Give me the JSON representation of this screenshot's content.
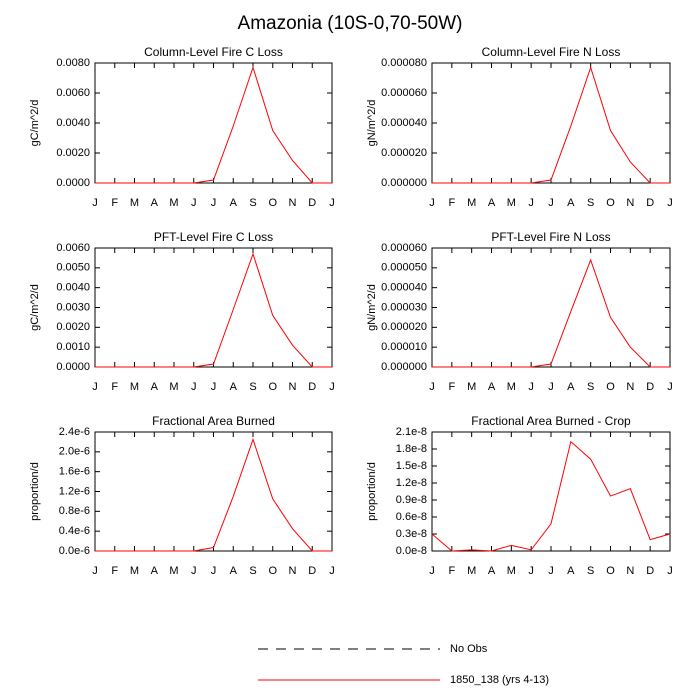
{
  "title": "Amazonia (10S-0,70-50W)",
  "legend": [
    {
      "name": "No Obs",
      "color": "#000000",
      "dash": true
    },
    {
      "name": "1850_138 (yrs 4-13)",
      "color": "#ff0000",
      "dash": false
    }
  ],
  "chart_data": [
    {
      "type": "line",
      "title": "Column-Level Fire C Loss",
      "ylabel": "gC/m^2/d",
      "categories": [
        "J",
        "F",
        "M",
        "A",
        "M",
        "J",
        "J",
        "A",
        "S",
        "O",
        "N",
        "D",
        "J"
      ],
      "series": [
        {
          "color": "#ff0000",
          "values": [
            0,
            0,
            0,
            0,
            0,
            0,
            0.0002,
            0.0038,
            0.0077,
            0.0035,
            0.0015,
            0,
            0
          ]
        }
      ],
      "ylim": [
        0,
        0.008
      ],
      "yticks": [
        {
          "value": 0,
          "label": "0.0000"
        },
        {
          "value": 0.002,
          "label": "0.0020"
        },
        {
          "value": 0.004,
          "label": "0.0040"
        },
        {
          "value": 0.006,
          "label": "0.0060"
        },
        {
          "value": 0.008,
          "label": "0.0080"
        }
      ]
    },
    {
      "type": "line",
      "title": "Column-Level Fire N Loss",
      "ylabel": "gN/m^2/d",
      "categories": [
        "J",
        "F",
        "M",
        "A",
        "M",
        "J",
        "J",
        "A",
        "S",
        "O",
        "N",
        "D",
        "J"
      ],
      "series": [
        {
          "color": "#ff0000",
          "values": [
            0,
            0,
            0,
            0,
            0,
            0,
            2e-06,
            3.8e-05,
            7.7e-05,
            3.5e-05,
            1.4e-05,
            0,
            0
          ]
        }
      ],
      "ylim": [
        0,
        8e-05
      ],
      "yticks": [
        {
          "value": 0,
          "label": "0.000000"
        },
        {
          "value": 2e-05,
          "label": "0.000020"
        },
        {
          "value": 4e-05,
          "label": "0.000040"
        },
        {
          "value": 6e-05,
          "label": "0.000060"
        },
        {
          "value": 8e-05,
          "label": "0.000080"
        }
      ]
    },
    {
      "type": "line",
      "title": "PFT-Level Fire C Loss",
      "ylabel": "gC/m^2/d",
      "categories": [
        "J",
        "F",
        "M",
        "A",
        "M",
        "J",
        "J",
        "A",
        "S",
        "O",
        "N",
        "D",
        "J"
      ],
      "series": [
        {
          "color": "#ff0000",
          "values": [
            0,
            0,
            0,
            0,
            0,
            0,
            0.00015,
            0.0029,
            0.0057,
            0.0026,
            0.0011,
            0,
            0
          ]
        }
      ],
      "ylim": [
        0,
        0.006
      ],
      "yticks": [
        {
          "value": 0,
          "label": "0.0000"
        },
        {
          "value": 0.001,
          "label": "0.0010"
        },
        {
          "value": 0.002,
          "label": "0.0020"
        },
        {
          "value": 0.003,
          "label": "0.0030"
        },
        {
          "value": 0.004,
          "label": "0.0040"
        },
        {
          "value": 0.005,
          "label": "0.0050"
        },
        {
          "value": 0.006,
          "label": "0.0060"
        }
      ]
    },
    {
      "type": "line",
      "title": "PFT-Level Fire N Loss",
      "ylabel": "gN/m^2/d",
      "categories": [
        "J",
        "F",
        "M",
        "A",
        "M",
        "J",
        "J",
        "A",
        "S",
        "O",
        "N",
        "D",
        "J"
      ],
      "series": [
        {
          "color": "#ff0000",
          "values": [
            0,
            0,
            0,
            0,
            0,
            0,
            1.5e-06,
            2.8e-05,
            5.4e-05,
            2.5e-05,
            1e-05,
            0,
            0
          ]
        }
      ],
      "ylim": [
        0,
        6e-05
      ],
      "yticks": [
        {
          "value": 0,
          "label": "0.000000"
        },
        {
          "value": 1e-05,
          "label": "0.000010"
        },
        {
          "value": 2e-05,
          "label": "0.000020"
        },
        {
          "value": 3e-05,
          "label": "0.000030"
        },
        {
          "value": 4e-05,
          "label": "0.000040"
        },
        {
          "value": 5e-05,
          "label": "0.000050"
        },
        {
          "value": 6e-05,
          "label": "0.000060"
        }
      ]
    },
    {
      "type": "line",
      "title": "Fractional Area Burned",
      "ylabel": "proportion/d",
      "categories": [
        "J",
        "F",
        "M",
        "A",
        "M",
        "J",
        "J",
        "A",
        "S",
        "O",
        "N",
        "D",
        "J"
      ],
      "series": [
        {
          "color": "#ff0000",
          "values": [
            0,
            0,
            0,
            0,
            0,
            0,
            7e-08,
            1.1e-06,
            2.25e-06,
            1.05e-06,
            4.5e-07,
            0,
            0
          ]
        }
      ],
      "ylim": [
        0,
        2.4e-06
      ],
      "yticks": [
        {
          "value": 0,
          "label": "0.0e-6"
        },
        {
          "value": 4e-07,
          "label": "0.4e-6"
        },
        {
          "value": 8e-07,
          "label": "0.8e-6"
        },
        {
          "value": 1.2e-06,
          "label": "1.2e-6"
        },
        {
          "value": 1.6e-06,
          "label": "1.6e-6"
        },
        {
          "value": 2e-06,
          "label": "2.0e-6"
        },
        {
          "value": 2.4e-06,
          "label": "2.4e-6"
        }
      ]
    },
    {
      "type": "line",
      "title": "Fractional Area Burned - Crop",
      "ylabel": "proportion/d",
      "categories": [
        "J",
        "F",
        "M",
        "A",
        "M",
        "J",
        "J",
        "A",
        "S",
        "O",
        "N",
        "D",
        "J"
      ],
      "series": [
        {
          "color": "#ff0000",
          "values": [
            3e-09,
            0,
            2e-10,
            0,
            1e-09,
            2e-10,
            4.8e-09,
            1.93e-08,
            1.62e-08,
            9.7e-09,
            1.1e-08,
            2e-09,
            3e-09
          ]
        }
      ],
      "ylim": [
        0,
        2.1e-08
      ],
      "yticks": [
        {
          "value": 0,
          "label": "0.0e-8"
        },
        {
          "value": 3e-09,
          "label": "0.3e-8"
        },
        {
          "value": 6e-09,
          "label": "0.6e-8"
        },
        {
          "value": 9e-09,
          "label": "0.9e-8"
        },
        {
          "value": 1.2e-08,
          "label": "1.2e-8"
        },
        {
          "value": 1.5e-08,
          "label": "1.5e-8"
        },
        {
          "value": 1.8e-08,
          "label": "1.8e-8"
        },
        {
          "value": 2.1e-08,
          "label": "2.1e-8"
        }
      ]
    }
  ]
}
